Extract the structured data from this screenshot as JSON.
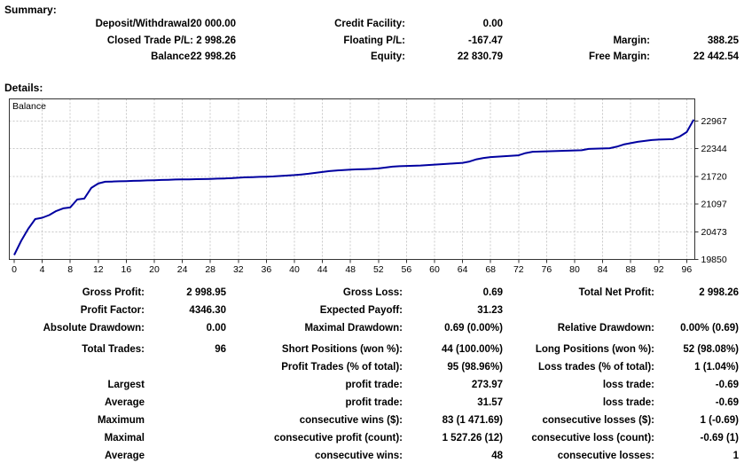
{
  "summary": {
    "title": "Summary:",
    "rows": [
      {
        "cells": [
          {
            "label": "Deposit/Withdrawal:",
            "value": "20 000.00"
          },
          {
            "label": "Credit Facility:",
            "value": "0.00"
          },
          {
            "label": "",
            "value": ""
          }
        ]
      },
      {
        "cells": [
          {
            "label": "Closed Trade P/L:",
            "value": "2 998.26"
          },
          {
            "label": "Floating P/L:",
            "value": "-167.47"
          },
          {
            "label": "Margin:",
            "value": "388.25"
          }
        ]
      },
      {
        "cells": [
          {
            "label": "Balance:",
            "value": "22 998.26"
          },
          {
            "label": "Equity:",
            "value": "22 830.79"
          },
          {
            "label": "Free Margin:",
            "value": "22 442.54"
          }
        ]
      }
    ]
  },
  "details": {
    "title": "Details:"
  },
  "chart_data": {
    "type": "line",
    "title": "Balance",
    "legend_position": "top-left-inside",
    "grid": true,
    "line_color": "#0000a0",
    "grid_color": "#c9c9c9",
    "border_color": "#333333",
    "x_ticks": [
      0,
      4,
      8,
      12,
      16,
      20,
      24,
      28,
      32,
      36,
      40,
      44,
      48,
      52,
      56,
      60,
      64,
      68,
      72,
      76,
      80,
      84,
      88,
      92,
      96
    ],
    "y_ticks": [
      19850,
      20473,
      21097,
      21720,
      22344,
      22967
    ],
    "x_range": [
      0,
      97.7
    ],
    "y_range": [
      19850,
      23460
    ],
    "series": [
      {
        "name": "Balance",
        "x": [
          0,
          1,
          2,
          3,
          4,
          5,
          6,
          7,
          8,
          9,
          10,
          11,
          12,
          13,
          14,
          15,
          16,
          17,
          18,
          19,
          20,
          21,
          22,
          23,
          24,
          25,
          26,
          27,
          28,
          29,
          30,
          31,
          32,
          33,
          34,
          35,
          36,
          37,
          38,
          39,
          40,
          41,
          42,
          43,
          44,
          45,
          46,
          47,
          48,
          49,
          50,
          51,
          52,
          53,
          54,
          55,
          56,
          57,
          58,
          59,
          60,
          61,
          62,
          63,
          64,
          65,
          66,
          67,
          68,
          69,
          70,
          71,
          72,
          73,
          74,
          75,
          76,
          77,
          78,
          79,
          80,
          81,
          82,
          83,
          84,
          85,
          86,
          87,
          88,
          89,
          90,
          91,
          92,
          93,
          94,
          95,
          96,
          97
        ],
        "values": [
          19950,
          20270,
          20540,
          20760,
          20790,
          20850,
          20940,
          21000,
          21020,
          21200,
          21220,
          21460,
          21560,
          21600,
          21605,
          21610,
          21615,
          21620,
          21625,
          21630,
          21635,
          21640,
          21645,
          21650,
          21652,
          21655,
          21658,
          21660,
          21665,
          21670,
          21675,
          21680,
          21690,
          21700,
          21705,
          21710,
          21715,
          21720,
          21730,
          21740,
          21750,
          21765,
          21780,
          21800,
          21820,
          21840,
          21855,
          21865,
          21875,
          21880,
          21885,
          21890,
          21900,
          21920,
          21940,
          21950,
          21955,
          21960,
          21965,
          21975,
          21985,
          21995,
          22005,
          22015,
          22025,
          22055,
          22105,
          22135,
          22155,
          22165,
          22175,
          22185,
          22195,
          22245,
          22275,
          22280,
          22285,
          22290,
          22295,
          22300,
          22305,
          22310,
          22340,
          22345,
          22350,
          22355,
          22390,
          22440,
          22470,
          22500,
          22520,
          22540,
          22550,
          22555,
          22560,
          22620,
          22720,
          22998
        ]
      }
    ]
  },
  "stats": {
    "rows": [
      {
        "cells": [
          {
            "label": "Gross Profit:",
            "value": "2 998.95"
          },
          {
            "label": "Gross Loss:",
            "value": "0.69"
          },
          {
            "label": "Total Net Profit:",
            "value": "2 998.26"
          }
        ]
      },
      {
        "cells": [
          {
            "label": "Profit Factor:",
            "value": "4346.30"
          },
          {
            "label": "Expected Payoff:",
            "value": "31.23"
          },
          {
            "label": "",
            "value": ""
          }
        ]
      },
      {
        "cells": [
          {
            "label": "Absolute Drawdown:",
            "value": "0.00"
          },
          {
            "label": "Maximal Drawdown:",
            "value": "0.69 (0.00%)"
          },
          {
            "label": "Relative Drawdown:",
            "value": "0.00% (0.69)"
          }
        ]
      },
      {
        "cells": [
          {
            "label": "Total Trades:",
            "value": "96"
          },
          {
            "label": "Short Positions (won %):",
            "value": "44 (100.00%)"
          },
          {
            "label": "Long Positions (won %):",
            "value": "52 (98.08%)"
          }
        ]
      },
      {
        "cells": [
          {
            "label": "",
            "value": ""
          },
          {
            "label": "Profit Trades (% of total):",
            "value": "95 (98.96%)"
          },
          {
            "label": "Loss trades (% of total):",
            "value": "1 (1.04%)"
          }
        ]
      },
      {
        "cells": [
          {
            "label": "Largest",
            "value": ""
          },
          {
            "label": "profit trade:",
            "value": "273.97"
          },
          {
            "label": "loss trade:",
            "value": "-0.69"
          }
        ]
      },
      {
        "cells": [
          {
            "label": "Average",
            "value": ""
          },
          {
            "label": "profit trade:",
            "value": "31.57"
          },
          {
            "label": "loss trade:",
            "value": "-0.69"
          }
        ]
      },
      {
        "cells": [
          {
            "label": "Maximum",
            "value": ""
          },
          {
            "label": "consecutive wins ($):",
            "value": "83 (1 471.69)"
          },
          {
            "label": "consecutive losses ($):",
            "value": "1 (-0.69)"
          }
        ]
      },
      {
        "cells": [
          {
            "label": "Maximal",
            "value": ""
          },
          {
            "label": "consecutive profit (count):",
            "value": "1 527.26 (12)"
          },
          {
            "label": "consecutive loss (count):",
            "value": "-0.69 (1)"
          }
        ]
      },
      {
        "cells": [
          {
            "label": "Average",
            "value": ""
          },
          {
            "label": "consecutive wins:",
            "value": "48"
          },
          {
            "label": "consecutive losses:",
            "value": "1"
          }
        ]
      }
    ]
  }
}
